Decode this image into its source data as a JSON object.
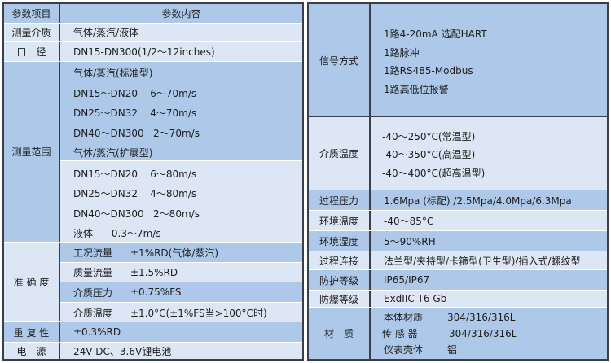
{
  "left": {
    "header": {
      "item": "参数项目",
      "content": "参数内容"
    },
    "medium": {
      "label": "测量介质",
      "value": "气体/蒸汽/液体"
    },
    "diameter": {
      "label": "口　径",
      "value": "DN15-DN300(1/2～12inches)"
    },
    "range": {
      "label": "测量范围",
      "lines": [
        "气体/蒸汽(标准型)",
        "DN15～DN20    6～70m/s",
        "DN25～DN32    4～70m/s",
        "DN40～DN300   2～70m/s",
        "气体/蒸汽(扩展型)",
        "DN15～DN20    6～80m/s",
        "DN25～DN32    4～80m/s",
        "DN40～DN300   2～80m/s",
        "液体      0.3～7m/s"
      ]
    },
    "accuracy": {
      "label": "准 确 度",
      "lines": [
        {
          "k": "工况流量",
          "v": "±1%RD(气体/蒸汽)"
        },
        {
          "k": "质量流量",
          "v": "±1.5%RD"
        },
        {
          "k": "介质压力",
          "v": "±0.75%FS"
        },
        {
          "k": "介质温度",
          "v": "±1.0°C(±1%FS当>100°C时)"
        }
      ]
    },
    "repeatability": {
      "label": "重 复 性",
      "value": "±0.3%RD"
    },
    "power": {
      "label": "电　源",
      "value": "24V DC、3.6V锂电池"
    }
  },
  "right": {
    "signal": {
      "label": "信号方式",
      "lines": [
        "1路4-20mA 选配HART",
        "1路脉冲",
        "1路RS485-Modbus",
        "1路高低位报警"
      ]
    },
    "medium_temp": {
      "label": "介质温度",
      "lines": [
        "-40～250°C(常温型)",
        "-40～350°C(高温型)",
        "-40～400°C(超高温型)"
      ]
    },
    "pressure": {
      "label": "过程压力",
      "value": "1.6Mpa (标配) /2.5Mpa/4.0Mpa/6.3Mpa"
    },
    "ambient_temp": {
      "label": "环境温度",
      "value": "-40～85°C"
    },
    "humidity": {
      "label": "环境湿度",
      "value": "5～90%RH"
    },
    "connection": {
      "label": "过程连接",
      "value": "法兰型/夹持型/卡箍型(卫生型)/插入式/螺纹型"
    },
    "protection": {
      "label": "防护等级",
      "value": "IP65/IP67"
    },
    "explosion": {
      "label": "防爆等级",
      "value": "ExdIIC T6 Gb"
    },
    "material": {
      "label": "材　质",
      "lines": [
        {
          "k": "本体材质",
          "v": "304/316/316L"
        },
        {
          "k": "传 感 器",
          "v": "304/316/316L"
        },
        {
          "k": "仪表壳体",
          "v": "铝"
        }
      ]
    }
  },
  "colors": {
    "dark_row": "#adc8e8",
    "light_row": "#dce6f4",
    "border": "#3a3f4a"
  }
}
